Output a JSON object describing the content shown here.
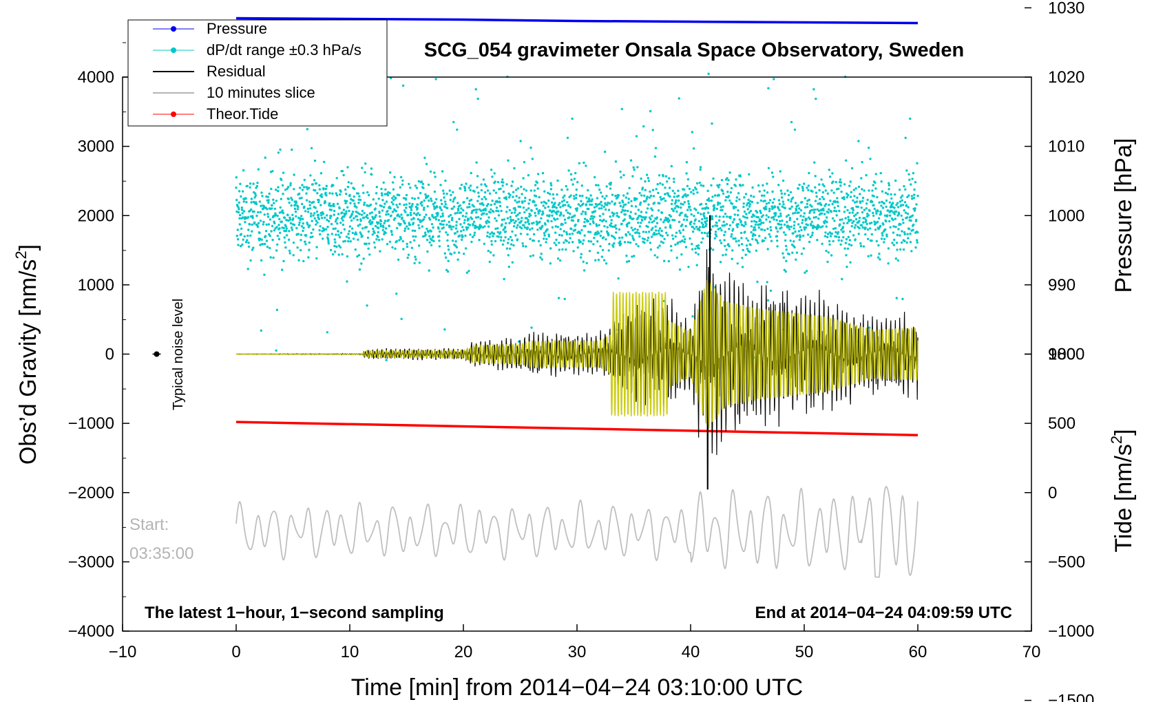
{
  "chart_data": {
    "type": "line",
    "title": "SCG_054 gravimeter Onsala Space Observatory, Sweden",
    "xlabel": "Time [min] from 2014−04−24 03:10:00 UTC",
    "ylabel_left": "Obs’d Gravity [nm/s",
    "ylabel_left_sup": "2",
    "ylabel_left_close": "]",
    "ylabel_right_pressure": "Pressure [hPa]",
    "ylabel_right_tide": "Tide [nm/s",
    "ylabel_right_tide_sup": "2",
    "ylabel_right_tide_close": "]",
    "xlim": [
      -10,
      70
    ],
    "ylim_gravity": [
      -4000,
      4000
    ],
    "ylim_pressure_axis": [
      980,
      1030
    ],
    "ylim_tide_axis": [
      -1500,
      1000
    ],
    "x_ticks": [
      "−10",
      "0",
      "10",
      "20",
      "30",
      "40",
      "50",
      "60",
      "70"
    ],
    "y_left_ticks": [
      "4000",
      "3000",
      "2000",
      "1000",
      "0",
      "−1000",
      "−2000",
      "−3000",
      "−4000"
    ],
    "y_right_pressure_ticks": [
      "1030",
      "1020",
      "1010",
      "1000",
      "990",
      "980"
    ],
    "y_right_tide_ticks": [
      "1000",
      "500",
      "0",
      "−500",
      "−1000",
      "−1500"
    ],
    "series": [
      {
        "name": "Pressure",
        "color": "#0000ee",
        "style": "line",
        "x": [
          0,
          10,
          20,
          30,
          40,
          50,
          60
        ],
        "values_hPa": [
          1028.5,
          1028.4,
          1028.3,
          1028.1,
          1028.0,
          1027.9,
          1027.8
        ]
      },
      {
        "name": "dP/dt range ±0.3 hPa/s",
        "color": "#00c8c8",
        "style": "scatter",
        "center_hPa": 1000,
        "typical_spread_hPa": 3,
        "max_spread_hPa": 21
      },
      {
        "name": "Residual",
        "color": "#000000",
        "style": "line",
        "envelope": [
          [
            0,
            5
          ],
          [
            11,
            10
          ],
          [
            11.5,
            90
          ],
          [
            20,
            100
          ],
          [
            21,
            230
          ],
          [
            25,
            270
          ],
          [
            26,
            350
          ],
          [
            32,
            350
          ],
          [
            35,
            900
          ],
          [
            38,
            900
          ],
          [
            40,
            600
          ],
          [
            41.5,
            2000
          ],
          [
            43,
            1400
          ],
          [
            46,
            1200
          ],
          [
            52,
            1000
          ],
          [
            56,
            650
          ],
          [
            60,
            700
          ]
        ],
        "min_value": -1950,
        "max_value": 2000
      },
      {
        "name": "10 minutes slice",
        "color": "#bfbfbf",
        "style": "line",
        "start_min": 0,
        "end_min": 60,
        "baseline_nm_s2": -2550,
        "min_value": -3220,
        "max_value": -1700
      },
      {
        "name": "Theor.Tide",
        "color": "#ff0000",
        "style": "line",
        "x": [
          0,
          60
        ],
        "values_tide_nm_s2": [
          510,
          415
        ]
      }
    ],
    "highpass_overlay_color": "#c8c800",
    "legend": {
      "placement": "top-left",
      "entries": [
        {
          "label": "Pressure",
          "color": "#0000ee",
          "marker": "dot"
        },
        {
          "label": "dP/dt range ±0.3 hPa/s",
          "color": "#00c8c8",
          "marker": "dot"
        },
        {
          "label": "Residual",
          "color": "#000000",
          "marker": "line"
        },
        {
          "label": "10 minutes slice",
          "color": "#b4b4b4",
          "marker": "line"
        },
        {
          "label": "Theor.Tide",
          "color": "#ff0000",
          "marker": "dot"
        }
      ]
    },
    "annotations": {
      "noise_label": "Typical noise level",
      "noise_marker": {
        "x": -7,
        "y": 0,
        "error": 30
      },
      "start_label": "Start:",
      "start_time": "03:35:00",
      "bottom_left": "The latest 1−hour, 1−second sampling",
      "bottom_right": "End at 2014−04−24 04:09:59 UTC"
    }
  }
}
